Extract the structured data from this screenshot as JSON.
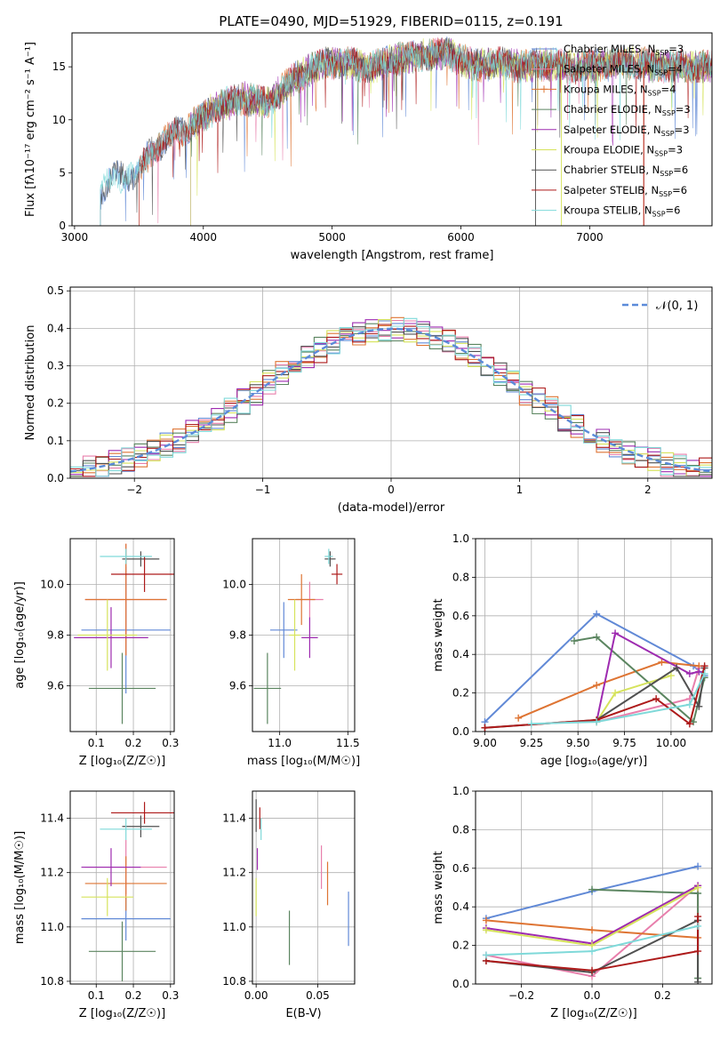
{
  "figure": {
    "title": "PLATE=0490, MJD=51929, FIBERID=0115, z=0.191"
  },
  "chart_data": [
    {
      "id": "spectrum",
      "type": "line",
      "xlabel": "wavelength [Angstrom, rest frame]",
      "ylabel": "Flux [fλ10⁻¹⁷ erg cm⁻² s⁻¹ A⁻¹]",
      "xlim": [
        2980,
        7950
      ],
      "ylim": [
        0,
        18.2
      ],
      "xticks": [
        "3000",
        "4000",
        "5000",
        "6000",
        "7000"
      ],
      "yticks": [
        "0",
        "5",
        "10",
        "15"
      ],
      "grid": false,
      "legend": "upper right",
      "data_anchor": {
        "wavelength": [
          3200,
          3300,
          3500,
          3600,
          3800,
          3950,
          4100,
          4300,
          4500,
          4700,
          4900,
          5100,
          5300,
          5500,
          5700,
          5900,
          6100,
          6300,
          6500,
          6700,
          6900,
          7100,
          7300,
          7500,
          7800
        ],
        "flux": [
          3.0,
          4.6,
          5.0,
          7.2,
          8.8,
          9.8,
          11.2,
          12.0,
          11.6,
          13.8,
          15.3,
          15.4,
          15.0,
          15.7,
          16.1,
          16.3,
          15.1,
          15.4,
          15.0,
          15.3,
          14.9,
          15.2,
          15.4,
          15.1,
          15.0
        ]
      },
      "series": [
        {
          "name": "Chabrier MILES, N",
          "sub": "SSP",
          "suffix": "=3",
          "color": "#6189d6",
          "start": 3200
        },
        {
          "name": "Salpeter MILES, N",
          "sub": "SSP",
          "suffix": "=4",
          "color": "#e87fac",
          "start": 3500
        },
        {
          "name": "Kroupa MILES, N",
          "sub": "SSP",
          "suffix": "=4",
          "color": "#de7433",
          "start": 3500
        },
        {
          "name": "Chabrier ELODIE, N",
          "sub": "SSP",
          "suffix": "=3",
          "color": "#5b8560",
          "start": 3900
        },
        {
          "name": "Salpeter ELODIE, N",
          "sub": "SSP",
          "suffix": "=3",
          "color": "#9e2bb0",
          "start": 3900
        },
        {
          "name": "Kroupa ELODIE, N",
          "sub": "SSP",
          "suffix": "=3",
          "color": "#d6e35c",
          "start": 3900
        },
        {
          "name": "Chabrier STELIB, N",
          "sub": "SSP",
          "suffix": "=6",
          "color": "#505050",
          "start": 3200
        },
        {
          "name": "Salpeter STELIB, N",
          "sub": "SSP",
          "suffix": "=6",
          "color": "#ad1a1a",
          "start": 3500
        },
        {
          "name": "Kroupa STELIB, N",
          "sub": "SSP",
          "suffix": "=6",
          "color": "#7fd9d9",
          "start": 3200
        }
      ]
    },
    {
      "id": "residuals",
      "type": "step",
      "xlabel": "(data-model)/error",
      "ylabel": "Normed distribution",
      "xlim": [
        -2.5,
        2.5
      ],
      "ylim": [
        0,
        0.51
      ],
      "xticks": [
        "−2",
        "−1",
        "0",
        "1",
        "2"
      ],
      "yticks": [
        "0.0",
        "0.1",
        "0.2",
        "0.3",
        "0.4",
        "0.5"
      ],
      "grid": true,
      "legend": "upper right",
      "reference_curve": {
        "name": "𝒩(0, 1)",
        "color": "#5b8bd9",
        "style": "dashed"
      }
    },
    {
      "id": "age_vs_Z",
      "type": "errorbar",
      "xlabel": "Z [log₁₀(Z/Z☉)]",
      "ylabel": "age  [log₁₀(age/yr)]",
      "xlim": [
        0.03,
        0.31
      ],
      "ylim": [
        9.42,
        10.18
      ],
      "xticks": [
        "0.1",
        "0.2",
        "0.3"
      ],
      "yticks": [
        "9.6",
        "9.8",
        "10.0"
      ],
      "grid": true,
      "points": [
        {
          "x": 0.18,
          "y": 9.82,
          "xerr": 0.12,
          "yerr": 0.25
        },
        {
          "x": 0.18,
          "y": 9.94,
          "xerr": 0.11,
          "yerr": 0.22
        },
        {
          "x": 0.18,
          "y": 9.94,
          "xerr": 0.11,
          "yerr": 0.22
        },
        {
          "x": 0.17,
          "y": 9.59,
          "xerr": 0.09,
          "yerr": 0.14
        },
        {
          "x": 0.14,
          "y": 9.79,
          "xerr": 0.1,
          "yerr": 0.12
        },
        {
          "x": 0.13,
          "y": 9.8,
          "xerr": 0.08,
          "yerr": 0.14
        },
        {
          "x": 0.22,
          "y": 10.1,
          "xerr": 0.05,
          "yerr": 0.03
        },
        {
          "x": 0.23,
          "y": 10.04,
          "xerr": 0.09,
          "yerr": 0.07
        },
        {
          "x": 0.18,
          "y": 10.11,
          "xerr": 0.07,
          "yerr": 0.03
        }
      ]
    },
    {
      "id": "age_vs_mass",
      "type": "errorbar",
      "xlabel": "mass [log₁₀(M/M☉)]",
      "ylabel": "",
      "xlim": [
        10.8,
        11.55
      ],
      "ylim": [
        9.42,
        10.18
      ],
      "xticks": [
        "11.0",
        "11.5"
      ],
      "yticks": [
        "9.6",
        "9.8",
        "10.0"
      ],
      "grid": true,
      "points": [
        {
          "x": 11.03,
          "y": 9.82,
          "xerr": 0.1,
          "yerr": 0.11
        },
        {
          "x": 11.22,
          "y": 9.94,
          "xerr": 0.1,
          "yerr": 0.07
        },
        {
          "x": 11.16,
          "y": 9.94,
          "xerr": 0.1,
          "yerr": 0.1
        },
        {
          "x": 10.91,
          "y": 9.59,
          "xerr": 0.1,
          "yerr": 0.14
        },
        {
          "x": 11.22,
          "y": 9.79,
          "xerr": 0.06,
          "yerr": 0.08
        },
        {
          "x": 11.11,
          "y": 9.8,
          "xerr": 0.04,
          "yerr": 0.14
        },
        {
          "x": 11.37,
          "y": 10.1,
          "xerr": 0.04,
          "yerr": 0.03
        },
        {
          "x": 11.42,
          "y": 10.04,
          "xerr": 0.04,
          "yerr": 0.04
        },
        {
          "x": 11.36,
          "y": 10.11,
          "xerr": 0.03,
          "yerr": 0.03
        }
      ]
    },
    {
      "id": "weight_vs_age",
      "type": "line",
      "xlabel": "age  [log₁₀(age/yr)]",
      "ylabel": "mass weight",
      "xlim": [
        8.95,
        10.22
      ],
      "ylim": [
        0,
        1
      ],
      "xticks": [
        "9.00",
        "9.25",
        "9.50",
        "9.75",
        "10.00"
      ],
      "yticks": [
        "0.0",
        "0.2",
        "0.4",
        "0.6",
        "0.8",
        "1.0"
      ],
      "grid": true,
      "series": [
        {
          "x": [
            9.0,
            9.6,
            10.12,
            10.18
          ],
          "y": [
            0.05,
            0.61,
            0.34,
            0.29
          ]
        },
        {
          "x": [
            9.6,
            10.1,
            10.15
          ],
          "y": [
            0.05,
            0.17,
            0.33
          ]
        },
        {
          "x": [
            9.18,
            9.6,
            9.95,
            10.15
          ],
          "y": [
            0.07,
            0.24,
            0.36,
            0.34
          ]
        },
        {
          "x": [
            9.48,
            9.6,
            10.12,
            10.18
          ],
          "y": [
            0.47,
            0.49,
            0.05,
            0.28
          ]
        },
        {
          "x": [
            9.6,
            9.7,
            10.1,
            10.15
          ],
          "y": [
            0.05,
            0.51,
            0.3,
            0.31
          ]
        },
        {
          "x": [
            9.6,
            9.7,
            10.0
          ],
          "y": [
            0.05,
            0.2,
            0.29
          ]
        },
        {
          "x": [
            9.0,
            9.6,
            10.03,
            10.15,
            10.18
          ],
          "y": [
            0.02,
            0.06,
            0.33,
            0.13,
            0.33
          ]
        },
        {
          "x": [
            9.0,
            9.6,
            9.92,
            10.1,
            10.18
          ],
          "y": [
            0.02,
            0.06,
            0.17,
            0.04,
            0.34
          ]
        },
        {
          "x": [
            9.25,
            9.6,
            10.1,
            10.18
          ],
          "y": [
            0.04,
            0.05,
            0.14,
            0.3
          ]
        }
      ]
    },
    {
      "id": "mass_vs_Z",
      "type": "errorbar",
      "xlabel": "Z [log₁₀(Z/Z☉)]",
      "ylabel": "mass [log₁₀(M/M☉)]",
      "xlim": [
        0.03,
        0.31
      ],
      "ylim": [
        10.79,
        11.5
      ],
      "xticks": [
        "0.1",
        "0.2",
        "0.3"
      ],
      "yticks": [
        "10.8",
        "11.0",
        "11.2",
        "11.4"
      ],
      "grid": true,
      "points": [
        {
          "x": 0.18,
          "y": 11.03,
          "xerr": 0.12,
          "yerr": 0.08
        },
        {
          "x": 0.18,
          "y": 11.22,
          "xerr": 0.11,
          "yerr": 0.1
        },
        {
          "x": 0.18,
          "y": 11.16,
          "xerr": 0.11,
          "yerr": 0.1
        },
        {
          "x": 0.17,
          "y": 10.91,
          "xerr": 0.09,
          "yerr": 0.11
        },
        {
          "x": 0.14,
          "y": 11.22,
          "xerr": 0.08,
          "yerr": 0.07
        },
        {
          "x": 0.13,
          "y": 11.11,
          "xerr": 0.07,
          "yerr": 0.07
        },
        {
          "x": 0.22,
          "y": 11.37,
          "xerr": 0.05,
          "yerr": 0.04
        },
        {
          "x": 0.23,
          "y": 11.42,
          "xerr": 0.09,
          "yerr": 0.04
        },
        {
          "x": 0.18,
          "y": 11.36,
          "xerr": 0.07,
          "yerr": 0.04
        }
      ]
    },
    {
      "id": "mass_vs_ebv",
      "type": "errorbar",
      "xlabel": "E(B-V)",
      "ylabel": "",
      "xlim": [
        -0.003,
        0.08
      ],
      "ylim": [
        10.79,
        11.5
      ],
      "xticks": [
        "0.00",
        "0.05"
      ],
      "yticks": [
        "10.8",
        "11.0",
        "11.2",
        "11.4"
      ],
      "grid": true,
      "points": [
        {
          "x": 0.075,
          "y": 11.03,
          "xerr": 0.0,
          "yerr": 0.1
        },
        {
          "x": 0.053,
          "y": 11.22,
          "xerr": 0.0,
          "yerr": 0.08
        },
        {
          "x": 0.058,
          "y": 11.16,
          "xerr": 0.0,
          "yerr": 0.08
        },
        {
          "x": 0.027,
          "y": 10.96,
          "xerr": 0.0,
          "yerr": 0.1
        },
        {
          "x": 0.001,
          "y": 11.25,
          "xerr": 0.0,
          "yerr": 0.04
        },
        {
          "x": 0.0,
          "y": 11.11,
          "xerr": 0.0,
          "yerr": 0.07
        },
        {
          "x": 0.0,
          "y": 11.41,
          "xerr": 0.0,
          "yerr": 0.06
        },
        {
          "x": 0.003,
          "y": 11.4,
          "xerr": 0.0,
          "yerr": 0.04
        },
        {
          "x": 0.004,
          "y": 11.36,
          "xerr": 0.0,
          "yerr": 0.04
        }
      ]
    },
    {
      "id": "weight_vs_Z",
      "type": "line",
      "xlabel": "Z [log₁₀(Z/Z☉)]",
      "ylabel": "mass weight",
      "xlim": [
        -0.33,
        0.34
      ],
      "ylim": [
        0,
        1
      ],
      "xticks": [
        "−0.2",
        "0.0",
        "0.2"
      ],
      "yticks": [
        "0.0",
        "0.2",
        "0.4",
        "0.6",
        "0.8",
        "1.0"
      ],
      "grid": true,
      "series": [
        {
          "x": [
            -0.3,
            0.0,
            0.3
          ],
          "y": [
            0.34,
            0.48,
            0.61
          ]
        },
        {
          "x": [
            -0.3,
            0.0,
            0.3,
            0.3
          ],
          "y": [
            0.15,
            0.04,
            0.51,
            0.33
          ]
        },
        {
          "x": [
            -0.3,
            0.0,
            0.3
          ],
          "y": [
            0.33,
            0.28,
            0.24
          ]
        },
        {
          "x": [
            0.0,
            0.3,
            0.3
          ],
          "y": [
            0.49,
            0.47,
            0.03
          ]
        },
        {
          "x": [
            -0.3,
            0.0,
            0.3
          ],
          "y": [
            0.29,
            0.21,
            0.51
          ]
        },
        {
          "x": [
            -0.3,
            0.0,
            0.3
          ],
          "y": [
            0.28,
            0.2,
            0.5
          ]
        },
        {
          "x": [
            -0.3,
            0.0,
            0.3,
            0.3
          ],
          "y": [
            0.12,
            0.06,
            0.33,
            0.01
          ]
        },
        {
          "x": [
            -0.3,
            0.0,
            0.3,
            0.3
          ],
          "y": [
            0.12,
            0.07,
            0.17,
            0.35
          ]
        },
        {
          "x": [
            -0.3,
            0.0,
            0.3
          ],
          "y": [
            0.15,
            0.17,
            0.3
          ]
        }
      ]
    }
  ]
}
